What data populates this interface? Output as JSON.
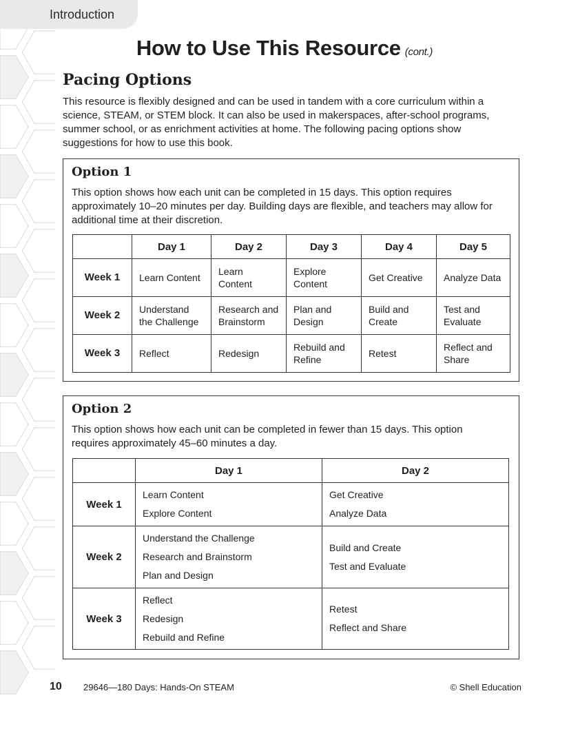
{
  "header_tab": "Introduction",
  "title": "How to Use This Resource",
  "title_suffix": "(cont.)",
  "section_heading": "Pacing Options",
  "intro": "This resource is flexibly designed and can be used in tandem with a core curriculum within a science, STEAM, or STEM block.  It can also be used in makerspaces, after-school programs, summer school, or as enrichment activities at home.  The following pacing options show suggestions for how to use this book.",
  "option1": {
    "heading": "Option 1",
    "description": "This option shows how each unit can be completed in 15 days.  This option requires approximately 10–20 minutes per day.  Building days are flexible, and teachers may allow for additional time at their discretion.",
    "columns": [
      "",
      "Day 1",
      "Day 2",
      "Day 3",
      "Day 4",
      "Day 5"
    ],
    "rows": [
      {
        "week": "Week 1",
        "cells": [
          "Learn Content",
          "Learn Content",
          "Explore Content",
          "Get Creative",
          "Analyze Data"
        ]
      },
      {
        "week": "Week 2",
        "cells": [
          "Understand the Challenge",
          "Research and Brainstorm",
          "Plan and Design",
          "Build and Create",
          "Test and Evaluate"
        ]
      },
      {
        "week": "Week 3",
        "cells": [
          "Reflect",
          "Redesign",
          "Rebuild and Refine",
          "Retest",
          "Reflect and Share"
        ]
      }
    ]
  },
  "option2": {
    "heading": "Option 2",
    "description": "This option shows how each unit can be completed in fewer than 15 days.  This option requires approximately 45–60 minutes a day.",
    "columns": [
      "",
      "Day 1",
      "Day 2"
    ],
    "rows": [
      {
        "week": "Week 1",
        "day1": [
          "Learn Content",
          "Explore Content"
        ],
        "day2": [
          "Get Creative",
          "Analyze Data"
        ]
      },
      {
        "week": "Week 2",
        "day1": [
          "Understand the Challenge",
          "Research and Brainstorm",
          "Plan and Design"
        ],
        "day2": [
          "Build and Create",
          "Test and Evaluate"
        ]
      },
      {
        "week": "Week 3",
        "day1": [
          "Reflect",
          "Redesign",
          "Rebuild and Refine"
        ],
        "day2": [
          "Retest",
          "Reflect and Share"
        ]
      }
    ]
  },
  "footer": {
    "page_number": "10",
    "book": "29646—180 Days: Hands-On STEAM",
    "copyright": "© Shell Education"
  }
}
